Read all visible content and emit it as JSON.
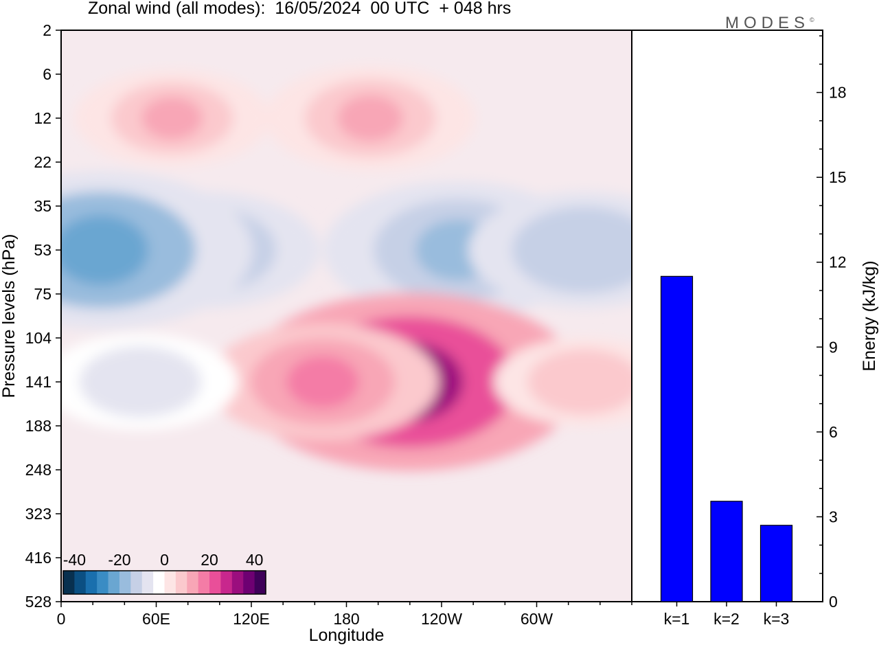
{
  "title": "Zonal wind (all modes):  16/05/2024  00 UTC  + 048 hrs",
  "logo": "MODES",
  "logo_mark": "©",
  "colors": {
    "bar_fill": "#0000ff",
    "scale": [
      "#08304f",
      "#0b4f82",
      "#1a6fad",
      "#3a8cc4",
      "#6aa6d1",
      "#99bcdd",
      "#c6d0e6",
      "#e4e4f0",
      "#ffffff",
      "#fde5e5",
      "#fbc9cd",
      "#f8a6b6",
      "#f47ca6",
      "#e94f99",
      "#c8278d",
      "#9b0e7e",
      "#6e0072",
      "#3f0059"
    ]
  },
  "chart_data": [
    {
      "type": "heatmap",
      "title": "",
      "xlabel": "Longitude",
      "ylabel": "Pressure levels (hPa)",
      "x_ticks": [
        "0",
        "60E",
        "120E",
        "180",
        "120W",
        "60W"
      ],
      "x_tick_values": [
        0,
        60,
        120,
        180,
        240,
        300
      ],
      "x_range": [
        0,
        360
      ],
      "y_ticks": [
        "2",
        "6",
        "12",
        "22",
        "35",
        "53",
        "75",
        "104",
        "141",
        "188",
        "248",
        "323",
        "416",
        "528"
      ],
      "colorbar": {
        "labels": [
          "-40",
          "-20",
          "0",
          "20",
          "40"
        ],
        "values": [
          -40,
          -20,
          0,
          20,
          40
        ],
        "range": [
          -45,
          45
        ]
      },
      "features": [
        {
          "lon": 90,
          "level": "53",
          "value": -15
        },
        {
          "lon": 25,
          "level": "53",
          "value": -25
        },
        {
          "lon": 250,
          "level": "53",
          "value": -20
        },
        {
          "lon": 330,
          "level": "53",
          "value": -15
        },
        {
          "lon": 70,
          "level": "12",
          "value": 10
        },
        {
          "lon": 195,
          "level": "12",
          "value": 12
        },
        {
          "lon": 220,
          "level": "141",
          "value": 30
        },
        {
          "lon": 165,
          "level": "141",
          "value": 15
        },
        {
          "lon": 330,
          "level": "141",
          "value": 8
        },
        {
          "lon": 50,
          "level": "141",
          "value": -10
        }
      ]
    },
    {
      "type": "bar",
      "title": "",
      "xlabel": "",
      "ylabel": "Energy (kJ/kg)",
      "categories": [
        "k=1",
        "k=2",
        "k=3"
      ],
      "values": [
        11.5,
        3.55,
        2.7
      ],
      "ylim": [
        0,
        20.2
      ],
      "y_ticks": [
        "0",
        "3",
        "6",
        "9",
        "12",
        "15",
        "18"
      ],
      "y_tick_values": [
        0,
        3,
        6,
        9,
        12,
        15,
        18
      ]
    }
  ]
}
